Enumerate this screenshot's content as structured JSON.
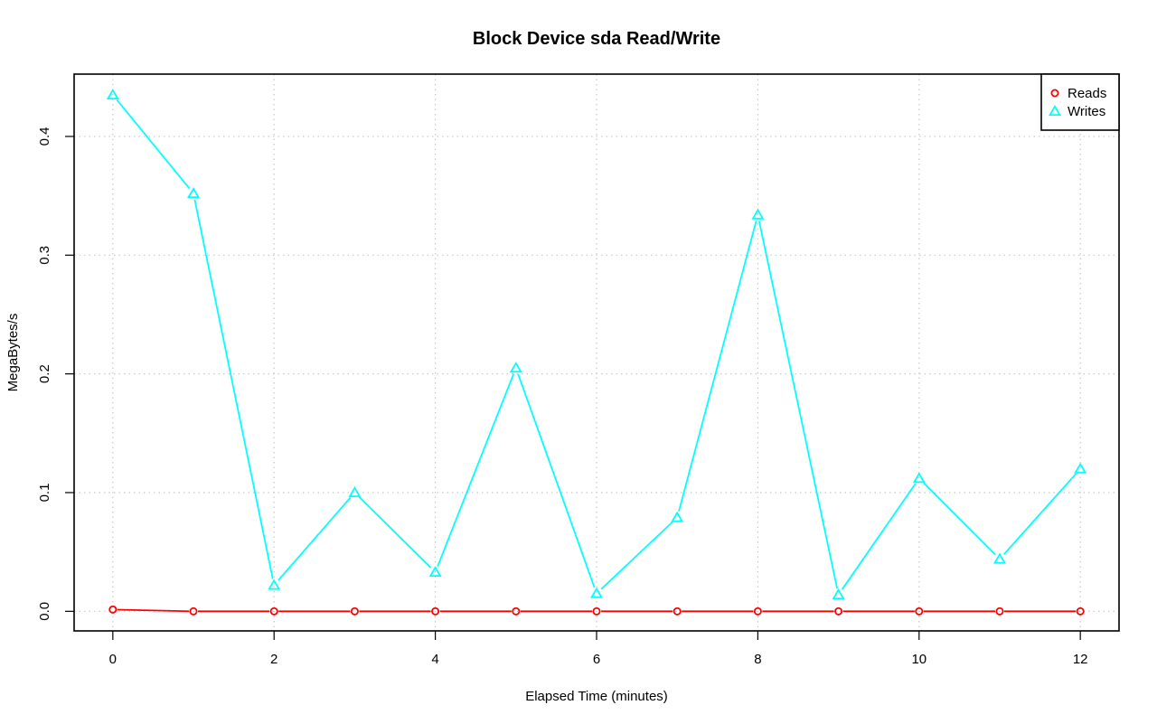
{
  "chart_data": {
    "type": "line",
    "title": "Block Device sda Read/Write",
    "xlabel": "Elapsed Time (minutes)",
    "ylabel": "MegaBytes/s",
    "x": [
      0,
      1,
      2,
      3,
      4,
      5,
      6,
      7,
      8,
      9,
      10,
      11,
      12
    ],
    "xlim": [
      -0.48,
      12.48
    ],
    "ylim": [
      -0.0165,
      0.4525
    ],
    "x_ticks": [
      0,
      2,
      4,
      6,
      8,
      10,
      12
    ],
    "y_ticks": [
      0.0,
      0.1,
      0.2,
      0.3,
      0.4
    ],
    "y_tick_labels": [
      "0.0",
      "0.1",
      "0.2",
      "0.3",
      "0.4"
    ],
    "grid": true,
    "legend_position": "top-right",
    "series": [
      {
        "name": "Reads",
        "color": "#ff0000",
        "marker": "circle",
        "values": [
          0.0015,
          0.0,
          0.0,
          0.0,
          0.0,
          0.0,
          0.0,
          0.0,
          0.0,
          0.0,
          0.0,
          0.0,
          0.0
        ]
      },
      {
        "name": "Writes",
        "color": "#00ffff",
        "marker": "triangle",
        "values": [
          0.435,
          0.352,
          0.022,
          0.1,
          0.033,
          0.205,
          0.015,
          0.079,
          0.334,
          0.014,
          0.112,
          0.044,
          0.12
        ]
      }
    ]
  }
}
